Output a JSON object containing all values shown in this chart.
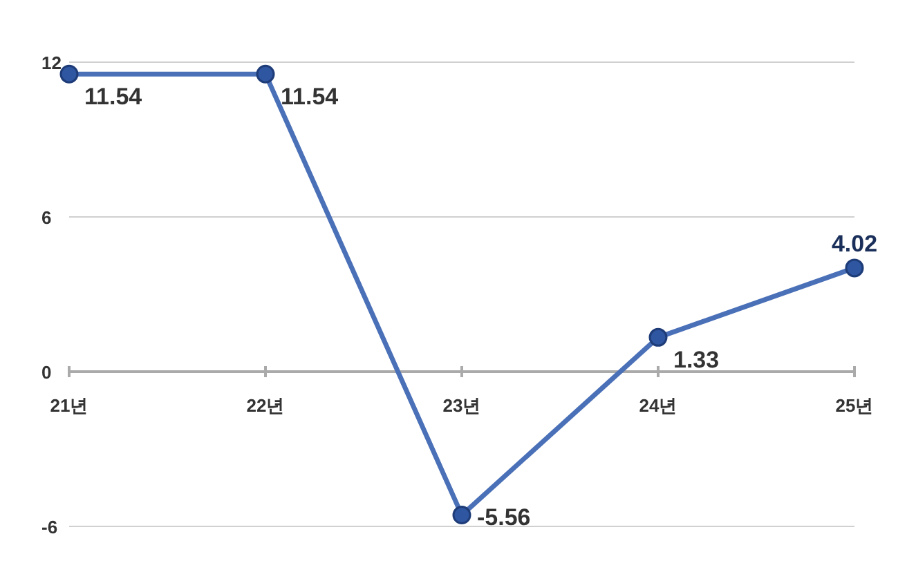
{
  "chart_data": {
    "type": "line",
    "categories": [
      "21년",
      "22년",
      "23년",
      "24년",
      "25년"
    ],
    "series": [
      {
        "color": "#4a70b8",
        "values": [
          11.54,
          11.54,
          -5.56,
          1.33,
          4.02
        ]
      }
    ],
    "ylim": [
      -6,
      12
    ],
    "yticks": [
      -6,
      0,
      6,
      12
    ],
    "grid": "y",
    "marker": "circle",
    "line_style": "solid",
    "data_labels": true
  }
}
